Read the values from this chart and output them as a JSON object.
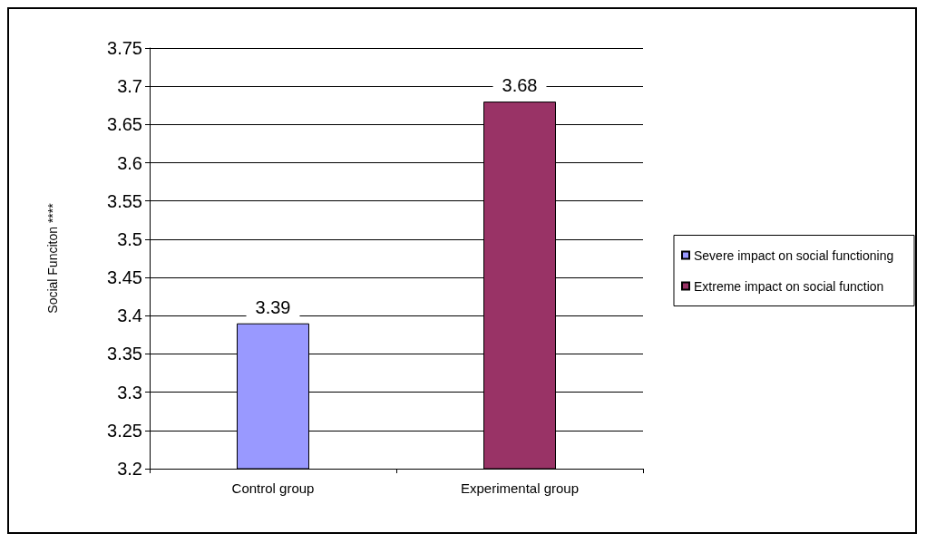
{
  "chart_data": {
    "type": "bar",
    "ylabel": "Social Funciton ****",
    "categories": [
      "Control group",
      "Experimental group"
    ],
    "series": [
      {
        "name": "Severe impact on social functioning",
        "color": "#9999ff",
        "values": [
          3.39,
          null
        ]
      },
      {
        "name": "Extreme impact on social function",
        "color": "#993366",
        "values": [
          null,
          3.68
        ]
      }
    ],
    "ylim": [
      3.2,
      3.75
    ],
    "yticks": [
      3.2,
      3.25,
      3.3,
      3.35,
      3.4,
      3.45,
      3.5,
      3.55,
      3.6,
      3.65,
      3.7,
      3.75
    ],
    "grid": "y",
    "legend": "right",
    "data_labels": true
  }
}
